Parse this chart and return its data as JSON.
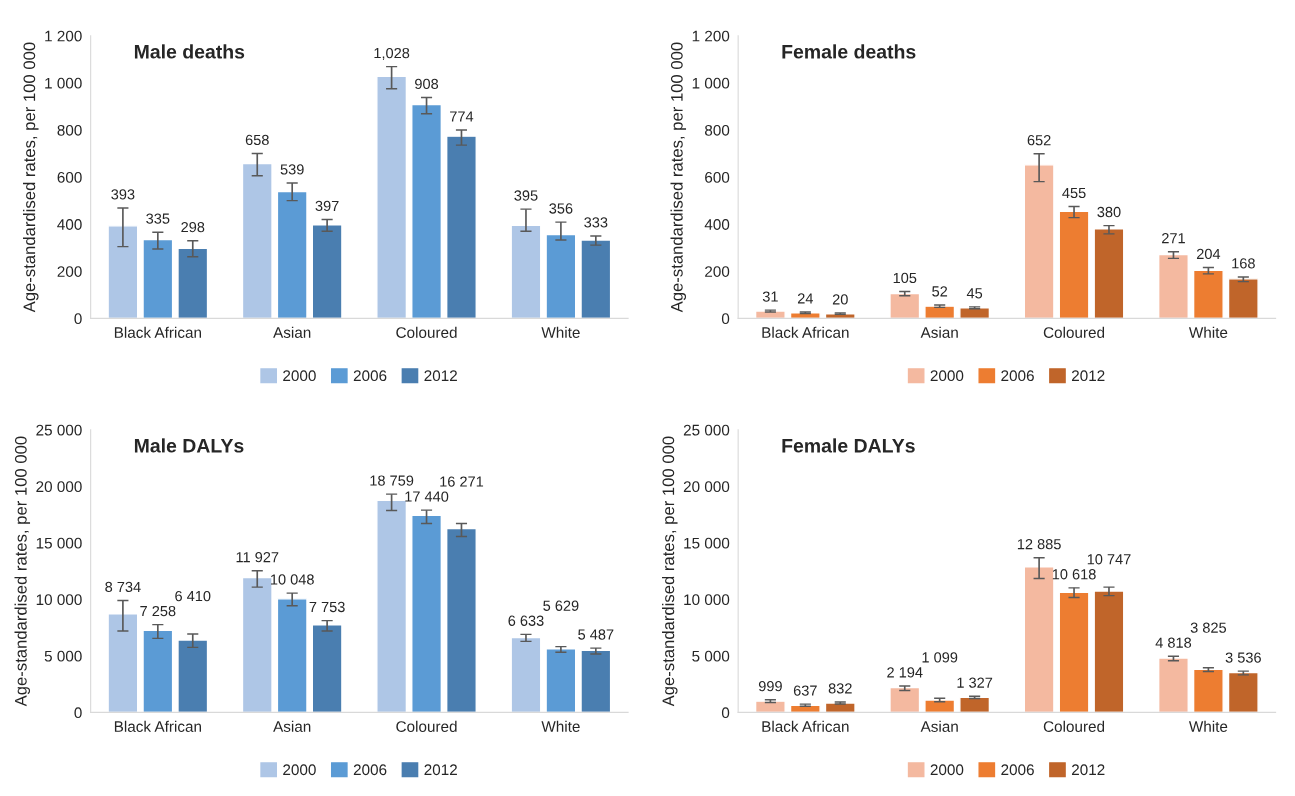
{
  "chart_data": [
    {
      "type": "bar",
      "title": "Male deaths",
      "ylabel": "Age-standardised rates, per 100 000",
      "categories": [
        "Black African",
        "Asian",
        "Coloured",
        "White"
      ],
      "ylim": [
        0,
        1200
      ],
      "yticks": [
        0,
        200,
        400,
        600,
        800,
        {
          "value": 1000,
          "label": "1 000"
        },
        {
          "value": 1200,
          "label": "1 200"
        }
      ],
      "legend": "bottom",
      "grid": false,
      "series": [
        {
          "name": "2000",
          "color": "#aec6e6",
          "values": [
            393,
            658,
            1028,
            395
          ],
          "value_labels": [
            "393",
            "658",
            "1,028",
            "395"
          ],
          "errors": [
            [
              305,
              469
            ],
            [
              606,
              700
            ],
            [
              975,
              1069
            ],
            [
              370,
              464
            ]
          ]
        },
        {
          "name": "2006",
          "color": "#5b9bd5",
          "values": [
            335,
            539,
            908,
            356
          ],
          "value_labels": [
            "335",
            "539",
            "908",
            "356"
          ],
          "errors": [
            [
              295,
              366
            ],
            [
              500,
              575
            ],
            [
              869,
              938
            ],
            [
              333,
              409
            ]
          ]
        },
        {
          "name": "2012",
          "color": "#4a7eb0",
          "values": [
            298,
            397,
            774,
            333
          ],
          "value_labels": [
            "298",
            "397",
            "774",
            "333"
          ],
          "errors": [
            [
              262,
              330
            ],
            [
              370,
              420
            ],
            [
              736,
              800
            ],
            [
              311,
              350
            ]
          ]
        }
      ]
    },
    {
      "type": "bar",
      "title": "Female deaths",
      "ylabel": "Age-standardised rates, per 100 000",
      "categories": [
        "Black African",
        "Asian",
        "Coloured",
        "White"
      ],
      "ylim": [
        0,
        1200
      ],
      "yticks": [
        0,
        200,
        400,
        600,
        800,
        {
          "value": 1000,
          "label": "1 000"
        },
        {
          "value": 1200,
          "label": "1 200"
        }
      ],
      "legend": "bottom",
      "grid": false,
      "series": [
        {
          "name": "2000",
          "color": "#f4b9a0",
          "values": [
            31,
            105,
            652,
            271
          ],
          "value_labels": [
            "31",
            "105",
            "652",
            "271"
          ],
          "errors": [
            [
              27,
              35
            ],
            [
              96,
              114
            ],
            [
              581,
              699
            ],
            [
              255,
              283
            ]
          ]
        },
        {
          "name": "2006",
          "color": "#ed7d31",
          "values": [
            24,
            52,
            455,
            204
          ],
          "value_labels": [
            "24",
            "52",
            "455",
            "204"
          ],
          "errors": [
            [
              21,
              27
            ],
            [
              47,
              57
            ],
            [
              428,
              475
            ],
            [
              189,
              216
            ]
          ]
        },
        {
          "name": "2012",
          "color": "#c0652a",
          "values": [
            20,
            45,
            380,
            168
          ],
          "value_labels": [
            "20",
            "45",
            "380",
            "168"
          ],
          "errors": [
            [
              17,
              23
            ],
            [
              41,
              49
            ],
            [
              359,
              394
            ],
            [
              156,
              176
            ]
          ]
        }
      ]
    },
    {
      "type": "bar",
      "title": "Male DALYs",
      "ylabel": "Age-standardised rates, per 100 000",
      "categories": [
        "Black African",
        "Asian",
        "Coloured",
        "White"
      ],
      "ylim": [
        0,
        25000
      ],
      "yticks": [
        0,
        {
          "value": 5000,
          "label": "5 000"
        },
        {
          "value": 10000,
          "label": "10 000"
        },
        {
          "value": 15000,
          "label": "15 000"
        },
        {
          "value": 20000,
          "label": "20 000"
        },
        {
          "value": 25000,
          "label": "25 000"
        }
      ],
      "legend": "bottom",
      "grid": false,
      "series": [
        {
          "name": "2000",
          "color": "#aec6e6",
          "values": [
            8734,
            11927,
            18759,
            6633
          ],
          "value_labels": [
            "8 734",
            "11 927",
            "18 759",
            "6 633"
          ],
          "errors": [
            [
              7204,
              9901
            ],
            [
              11086,
              12533
            ],
            [
              17862,
              19309
            ],
            [
              6283,
              6908
            ]
          ]
        },
        {
          "name": "2006",
          "color": "#5b9bd5",
          "values": [
            7258,
            10048,
            17440,
            5629
          ],
          "value_labels": [
            "7 258",
            "10 048",
            "17 440",
            "5 629"
          ],
          "errors": [
            [
              6546,
              7763
            ],
            [
              9441,
              10559
            ],
            [
              16711,
              17895
            ],
            [
              5329,
              5822
            ]
          ]
        },
        {
          "name": "2012",
          "color": "#4a7eb0",
          "values": [
            6410,
            7753,
            16271,
            5487
          ],
          "value_labels": [
            "6 410",
            "7 753",
            "16 271",
            "5 487"
          ],
          "errors": [
            [
              5757,
              6941
            ],
            [
              7204,
              8125
            ],
            [
              15559,
              16711
            ],
            [
              5164,
              5691
            ]
          ]
        }
      ]
    },
    {
      "type": "bar",
      "title": "Female DALYs",
      "ylabel": "Age-standardised rates, per 100 000",
      "categories": [
        "Black African",
        "Asian",
        "Coloured",
        "White"
      ],
      "ylim": [
        0,
        25000
      ],
      "yticks": [
        0,
        {
          "value": 5000,
          "label": "5 000"
        },
        {
          "value": 10000,
          "label": "10 000"
        },
        {
          "value": 15000,
          "label": "15 000"
        },
        {
          "value": 20000,
          "label": "20 000"
        },
        {
          "value": 25000,
          "label": "25 000"
        }
      ],
      "legend": "bottom",
      "grid": false,
      "series": [
        {
          "name": "2000",
          "color": "#f4b9a0",
          "values": [
            999,
            2194,
            12885,
            4818
          ],
          "value_labels": [
            "999",
            "2 194",
            "12 885",
            "4 818"
          ],
          "errors": [
            [
              880,
              1120
            ],
            [
              1940,
              2340
            ],
            [
              11842,
              13684
            ],
            [
              4572,
              4967
            ]
          ]
        },
        {
          "name": "2006",
          "color": "#ed7d31",
          "values": [
            637,
            1099,
            10618,
            3825
          ],
          "value_labels": [
            "637",
            "1 099",
            "10 618",
            "3 825"
          ],
          "errors": [
            [
              550,
              730
            ],
            [
              950,
              1250
            ],
            [
              10164,
              11020
            ],
            [
              3618,
              3947
            ]
          ]
        },
        {
          "name": "2012",
          "color": "#c0652a",
          "values": [
            832,
            1327,
            10747,
            3536
          ],
          "value_labels": [
            "832",
            "1 327",
            "10 747",
            "3 536"
          ],
          "errors": [
            [
              750,
              920
            ],
            [
              1230,
              1430
            ],
            [
              10329,
              11086
            ],
            [
              3322,
              3651
            ]
          ]
        }
      ]
    }
  ]
}
